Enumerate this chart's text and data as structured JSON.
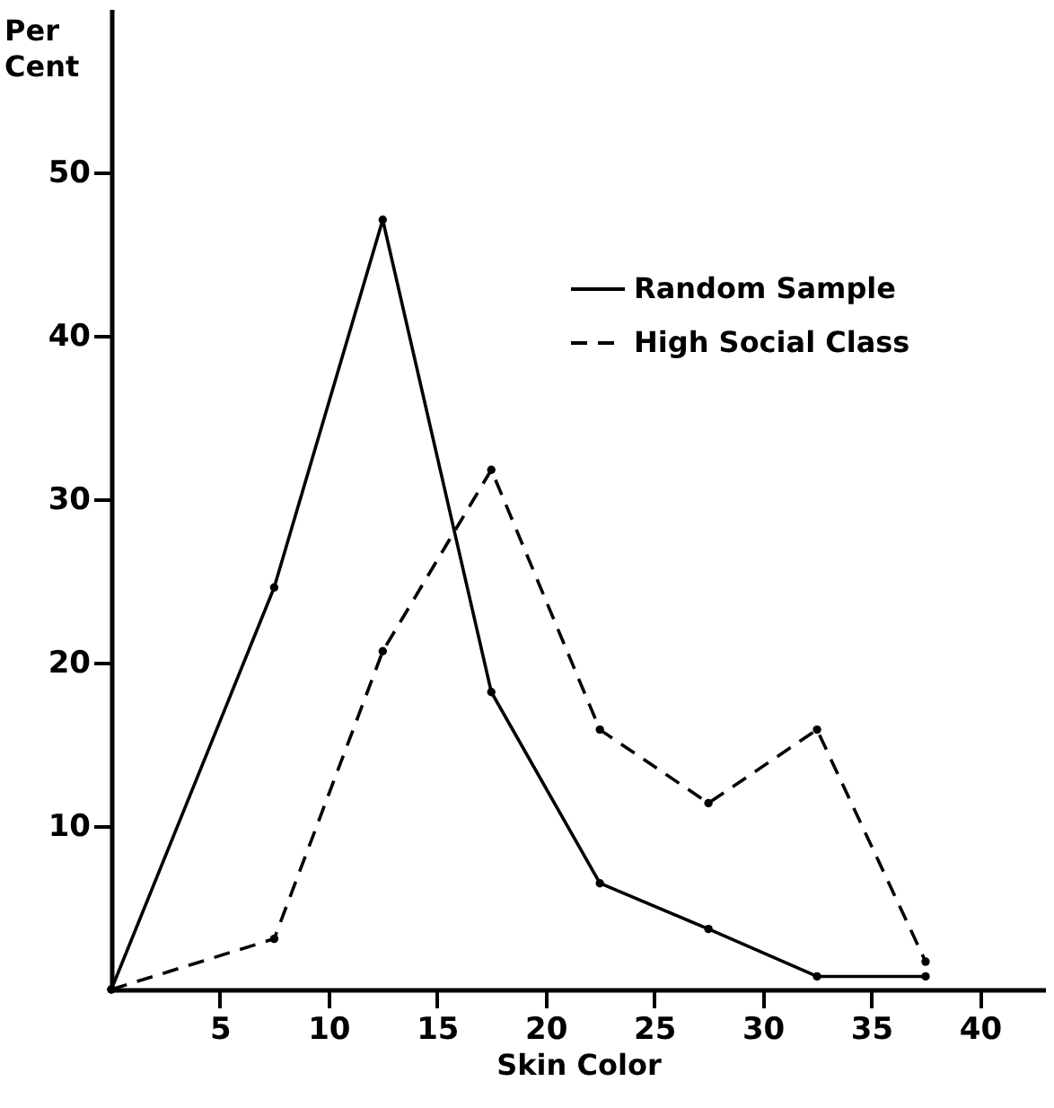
{
  "chart_data": {
    "type": "line",
    "xlabel": "Skin Color",
    "ylabel": "Per Cent",
    "x": [
      0,
      7.5,
      12.5,
      17.5,
      22.5,
      27.5,
      32.5,
      37.5
    ],
    "xlim": [
      0,
      43
    ],
    "xticks": [
      5,
      10,
      15,
      20,
      25,
      30,
      35,
      40
    ],
    "ylim": [
      0,
      60
    ],
    "yticks": [
      10,
      20,
      30,
      40,
      50
    ],
    "marker": "circle",
    "legend": "top right",
    "series": [
      {
        "name": "Random Sample",
        "color": "#000000",
        "line_style": "solid",
        "values": [
          0,
          24.6,
          47.1,
          18.2,
          6.5,
          3.7,
          0.8,
          0.8
        ]
      },
      {
        "name": "High Social Class",
        "color": "#000000",
        "line_style": "dashed",
        "values": [
          0,
          3.1,
          20.7,
          31.8,
          15.9,
          11.4,
          15.9,
          1.7
        ]
      }
    ]
  }
}
